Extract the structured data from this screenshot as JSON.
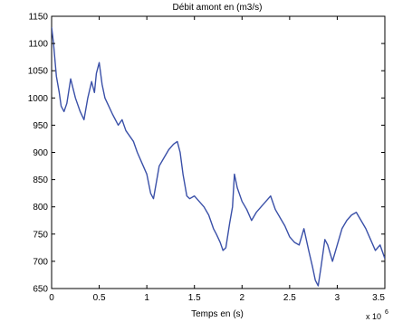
{
  "chart_data": {
    "type": "line",
    "title": "Débit amont en (m3/s)",
    "xlabel": "Temps en (s)",
    "ylabel": "",
    "x_multiplier_base": "x 10",
    "x_multiplier_exponent": "6",
    "xlim": [
      0,
      3.5
    ],
    "ylim": [
      650,
      1150
    ],
    "xticks": [
      0,
      0.5,
      1,
      1.5,
      2,
      2.5,
      3,
      3.5
    ],
    "xtick_labels": [
      "0",
      "0.5",
      "1",
      "1.5",
      "2",
      "2.5",
      "3",
      "3.5"
    ],
    "yticks": [
      650,
      700,
      750,
      800,
      850,
      900,
      950,
      1000,
      1050,
      1100,
      1150
    ],
    "ytick_labels": [
      "650",
      "700",
      "750",
      "800",
      "850",
      "900",
      "950",
      "1000",
      "1050",
      "1100",
      "1150"
    ],
    "grid": false,
    "colors": {
      "line": "#3a50a8",
      "axes": "#000000",
      "background": "#ffffff"
    },
    "series": [
      {
        "x": [
          0,
          0.02,
          0.05,
          0.08,
          0.1,
          0.13,
          0.16,
          0.2,
          0.25,
          0.3,
          0.34,
          0.38,
          0.42,
          0.45,
          0.47,
          0.5,
          0.53,
          0.56,
          0.6,
          0.64,
          0.7,
          0.74,
          0.78,
          0.82,
          0.86,
          0.9,
          0.95,
          1.0,
          1.04,
          1.07,
          1.1,
          1.13,
          1.18,
          1.23,
          1.28,
          1.32,
          1.35,
          1.38,
          1.42,
          1.45,
          1.5,
          1.55,
          1.6,
          1.65,
          1.7,
          1.73,
          1.77,
          1.8,
          1.83,
          1.87,
          1.9,
          1.92,
          1.95,
          2.0,
          2.05,
          2.1,
          2.15,
          2.2,
          2.25,
          2.3,
          2.35,
          2.4,
          2.45,
          2.5,
          2.55,
          2.6,
          2.65,
          2.7,
          2.74,
          2.77,
          2.8,
          2.83,
          2.87,
          2.9,
          2.95,
          3.0,
          3.05,
          3.1,
          3.15,
          3.2,
          3.25,
          3.3,
          3.35,
          3.4,
          3.45,
          3.5
        ],
        "y": [
          1130,
          1100,
          1040,
          1010,
          985,
          975,
          990,
          1035,
          1000,
          975,
          960,
          1000,
          1030,
          1010,
          1045,
          1065,
          1025,
          1000,
          985,
          970,
          950,
          960,
          940,
          930,
          920,
          900,
          880,
          860,
          825,
          815,
          845,
          875,
          890,
          905,
          915,
          920,
          900,
          860,
          820,
          815,
          820,
          810,
          800,
          785,
          760,
          750,
          735,
          720,
          725,
          770,
          800,
          860,
          835,
          810,
          795,
          775,
          790,
          800,
          810,
          820,
          795,
          780,
          765,
          745,
          735,
          730,
          760,
          720,
          690,
          665,
          655,
          690,
          740,
          730,
          700,
          730,
          760,
          775,
          785,
          790,
          775,
          760,
          740,
          720,
          730,
          705
        ]
      }
    ]
  }
}
